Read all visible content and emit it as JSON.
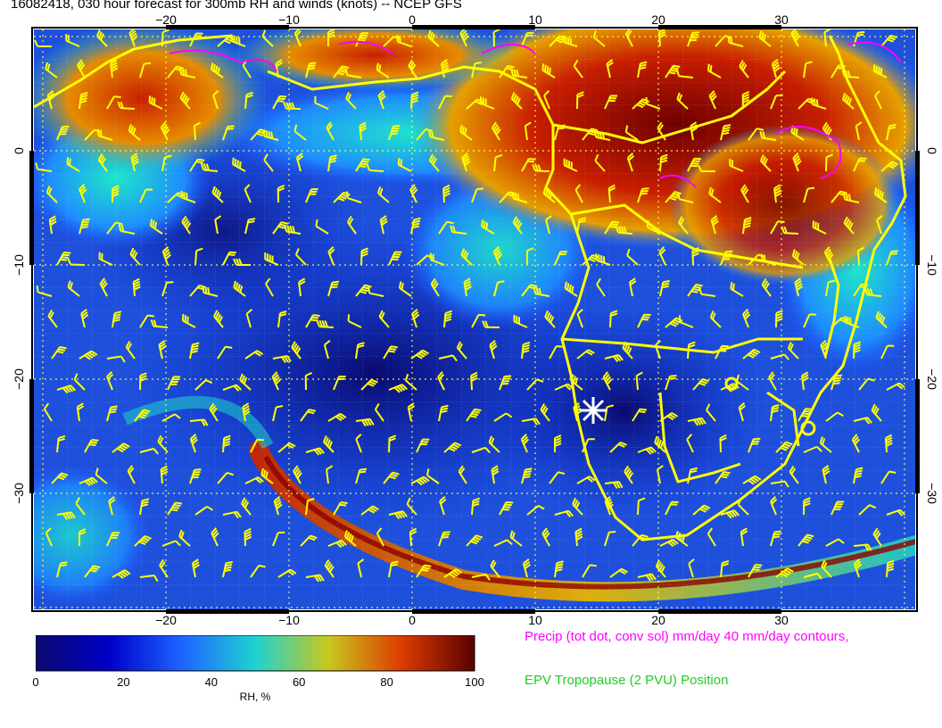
{
  "title": "16082418, 030 hour forecast for 300mb RH and winds (knots) -- NCEP GFS",
  "map": {
    "lon_ticks": [
      "−20",
      "−10",
      "0",
      "10",
      "20",
      "30"
    ],
    "lat_ticks": [
      "0",
      "−10",
      "−20",
      "−30"
    ],
    "lon_range": [
      -30,
      41
    ],
    "lat_range": [
      -40,
      10
    ],
    "colors": {
      "coast": "#ffff00",
      "precip": "#ff00ff",
      "barbs": "#ffff00",
      "grid": "#ffffff"
    }
  },
  "colorbar": {
    "labels": [
      "0",
      "20",
      "40",
      "60",
      "80",
      "100"
    ],
    "title": "RH, %",
    "stops": [
      "#0a0a6e",
      "#0000c8",
      "#1e64ff",
      "#1ed2d2",
      "#c8c81e",
      "#dc3c00",
      "#5a0000"
    ]
  },
  "legend": {
    "precip": "Precip (tot dot, conv sol) mm/day 40 mm/day contours,",
    "epv": "EPV Tropopause (2 PVU) Position"
  }
}
